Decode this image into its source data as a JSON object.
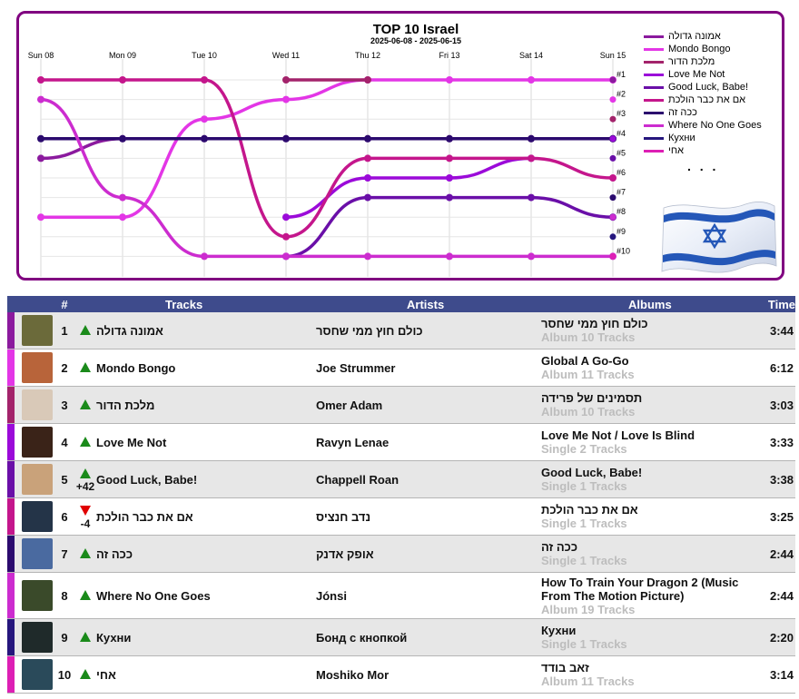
{
  "chart_data": {
    "type": "line",
    "title": "TOP 10 Israel",
    "subtitle": "2025-06-08 - 2025-06-15",
    "categories": [
      "Sun 08",
      "Mon 09",
      "Tue 10",
      "Wed 11",
      "Thu 12",
      "Fri 13",
      "Sat 14",
      "Sun 15"
    ],
    "rank_labels": [
      "#1",
      "#2",
      "#3",
      "#4",
      "#5",
      "#6",
      "#7",
      "#8",
      "#9",
      "#10"
    ],
    "y_axis": "rank",
    "ylim": [
      1,
      10
    ],
    "legend_position": "right",
    "legend_more": ". . .",
    "series": [
      {
        "name": "אמונה גדולה",
        "color": "#8b1a9e",
        "values": [
          5,
          4,
          4,
          4,
          4,
          4,
          4,
          4
        ]
      },
      {
        "name": "Mondo Bongo",
        "color": "#e336e6",
        "values": [
          8,
          8,
          3,
          2,
          1,
          1,
          1,
          1
        ]
      },
      {
        "name": "מלכת הדור",
        "color": "#a3236b",
        "values": [
          null,
          null,
          null,
          1,
          1,
          null,
          null,
          null
        ]
      },
      {
        "name": "Love Me Not",
        "color": "#9b0ad9",
        "values": [
          null,
          null,
          null,
          8,
          6,
          6,
          5,
          null
        ]
      },
      {
        "name": "Good Luck, Babe!",
        "color": "#6a0fa8",
        "values": [
          null,
          null,
          null,
          10,
          7,
          7,
          7,
          8
        ]
      },
      {
        "name": "אם את כבר הולכת",
        "color": "#c4168c",
        "values": [
          1,
          1,
          1,
          9,
          5,
          5,
          5,
          6
        ]
      },
      {
        "name": "ככה זה",
        "color": "#2b0a6e",
        "values": [
          4,
          4,
          4,
          4,
          4,
          4,
          4,
          4
        ]
      },
      {
        "name": "Where No One Goes",
        "color": "#cc2ccf",
        "values": [
          2,
          7,
          10,
          10,
          10,
          10,
          10,
          10
        ]
      },
      {
        "name": "Кухни",
        "color": "#26167d",
        "values": [
          null,
          null,
          null,
          null,
          null,
          null,
          null,
          null
        ]
      },
      {
        "name": "אחי",
        "color": "#dd1fb4",
        "values": [
          null,
          null,
          null,
          null,
          null,
          null,
          null,
          null
        ]
      }
    ]
  },
  "table": {
    "headers": {
      "rank": "#",
      "tracks": "Tracks",
      "artists": "Artists",
      "albums": "Albums",
      "time": "Time"
    },
    "rows": [
      {
        "rank": "1",
        "direction": "up",
        "change": "",
        "track": "אמונה גדולה",
        "artist": "כולם חוץ ממי שחסר",
        "album": "כולם חוץ ממי שחסר",
        "album_info": "Album 10 Tracks",
        "time": "3:44",
        "color": "#8b1a9e"
      },
      {
        "rank": "2",
        "direction": "up",
        "change": "",
        "track": "Mondo Bongo",
        "artist": "Joe Strummer",
        "album": "Global A Go-Go",
        "album_info": "Album 11 Tracks",
        "time": "6:12",
        "color": "#e336e6"
      },
      {
        "rank": "3",
        "direction": "up",
        "change": "",
        "track": "מלכת הדור",
        "artist": "Omer Adam",
        "album": "תסמינים של פרידה",
        "album_info": "Album 10 Tracks",
        "time": "3:03",
        "color": "#a3236b"
      },
      {
        "rank": "4",
        "direction": "up",
        "change": "",
        "track": "Love Me Not",
        "artist": "Ravyn Lenae",
        "album": "Love Me Not / Love Is Blind",
        "album_info": "Single 2 Tracks",
        "time": "3:33",
        "color": "#9b0ad9"
      },
      {
        "rank": "5",
        "direction": "up",
        "change": "+42",
        "track": "Good Luck, Babe!",
        "artist": "Chappell Roan",
        "album": "Good Luck, Babe!",
        "album_info": "Single 1 Tracks",
        "time": "3:38",
        "color": "#6a0fa8"
      },
      {
        "rank": "6",
        "direction": "down",
        "change": "-4",
        "track": "אם את כבר הולכת",
        "artist": "נדב חנציס",
        "album": "אם את כבר הולכת",
        "album_info": "Single 1 Tracks",
        "time": "3:25",
        "color": "#c4168c"
      },
      {
        "rank": "7",
        "direction": "up",
        "change": "",
        "track": "ככה זה",
        "artist": "אופק אדנק",
        "album": "ככה זה",
        "album_info": "Single 1 Tracks",
        "time": "2:44",
        "color": "#2b0a6e"
      },
      {
        "rank": "8",
        "direction": "up",
        "change": "",
        "track": "Where No One Goes",
        "artist": "Jónsi",
        "album": "How To Train Your Dragon 2 (Music From The Motion Picture)",
        "album_info": "Album 19 Tracks",
        "time": "2:44",
        "color": "#cc2ccf"
      },
      {
        "rank": "9",
        "direction": "up",
        "change": "",
        "track": "Кухни",
        "artist": "Бонд с кнопкой",
        "album": "Кухни",
        "album_info": "Single 1 Tracks",
        "time": "2:20",
        "color": "#26167d"
      },
      {
        "rank": "10",
        "direction": "up",
        "change": "",
        "track": "אחי",
        "artist": "Moshiko Mor",
        "album": "זאב בודד",
        "album_info": "Album 11 Tracks",
        "time": "3:14",
        "color": "#dd1fb4"
      }
    ],
    "covers": [
      "#6b6a3a",
      "#b8643a",
      "#d9c9b8",
      "#3a2318",
      "#c9a27a",
      "#243448",
      "#4a6aa0",
      "#3a4a2a",
      "#1f2a2a",
      "#2a4a5a"
    ]
  }
}
